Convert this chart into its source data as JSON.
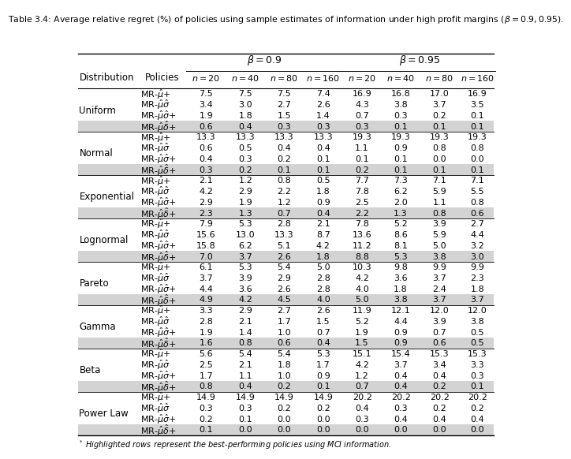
{
  "title": "Table 3.4: Average relative regret (%) of policies using sample estimates of information under high profit margins ($\\beta = 0.9, 0.95$).",
  "footnote": "* Highlighted rows represent the best-performing policies using MCI information.",
  "distributions": [
    "Uniform",
    "Normal",
    "Exponential",
    "Lognormal",
    "Pareto",
    "Gamma",
    "Beta",
    "Power Law"
  ],
  "data": {
    "Uniform": [
      [
        7.5,
        7.5,
        7.5,
        7.4,
        16.9,
        16.8,
        17.0,
        16.9
      ],
      [
        3.4,
        3.0,
        2.7,
        2.6,
        4.3,
        3.8,
        3.7,
        3.5
      ],
      [
        1.9,
        1.8,
        1.5,
        1.4,
        0.7,
        0.3,
        0.2,
        0.1
      ],
      [
        0.6,
        0.4,
        0.3,
        0.3,
        0.3,
        0.1,
        0.1,
        0.1
      ]
    ],
    "Normal": [
      [
        13.3,
        13.3,
        13.3,
        13.3,
        19.3,
        19.3,
        19.3,
        19.3
      ],
      [
        0.6,
        0.5,
        0.4,
        0.4,
        1.1,
        0.9,
        0.8,
        0.8
      ],
      [
        0.4,
        0.3,
        0.2,
        0.1,
        0.1,
        0.1,
        0.0,
        0.0
      ],
      [
        0.3,
        0.2,
        0.1,
        0.1,
        0.2,
        0.1,
        0.1,
        0.1
      ]
    ],
    "Exponential": [
      [
        2.1,
        1.2,
        0.8,
        0.5,
        7.7,
        7.3,
        7.1,
        7.1
      ],
      [
        4.2,
        2.9,
        2.2,
        1.8,
        7.8,
        6.2,
        5.9,
        5.5
      ],
      [
        2.9,
        1.9,
        1.2,
        0.9,
        2.5,
        2.0,
        1.1,
        0.8
      ],
      [
        2.3,
        1.3,
        0.7,
        0.4,
        2.2,
        1.3,
        0.8,
        0.6
      ]
    ],
    "Lognormal": [
      [
        7.9,
        5.3,
        2.8,
        2.1,
        7.8,
        5.2,
        3.9,
        2.7
      ],
      [
        15.6,
        13.0,
        13.3,
        8.7,
        13.6,
        8.6,
        5.9,
        4.4
      ],
      [
        15.8,
        6.2,
        5.1,
        4.2,
        11.2,
        8.1,
        5.0,
        3.2
      ],
      [
        7.0,
        3.7,
        2.6,
        1.8,
        8.8,
        5.3,
        3.8,
        3.0
      ]
    ],
    "Pareto": [
      [
        6.1,
        5.3,
        5.4,
        5.0,
        10.3,
        9.8,
        9.9,
        9.9
      ],
      [
        3.7,
        3.9,
        2.9,
        2.8,
        4.2,
        3.6,
        3.7,
        2.3
      ],
      [
        4.4,
        3.6,
        2.6,
        2.8,
        4.0,
        1.8,
        2.4,
        1.8
      ],
      [
        4.9,
        4.2,
        4.5,
        4.0,
        5.0,
        3.8,
        3.7,
        3.7
      ]
    ],
    "Gamma": [
      [
        3.3,
        2.9,
        2.7,
        2.6,
        11.9,
        12.1,
        12.0,
        12.0
      ],
      [
        2.8,
        2.1,
        1.7,
        1.5,
        5.2,
        4.4,
        3.9,
        3.8
      ],
      [
        1.9,
        1.4,
        1.0,
        0.7,
        1.9,
        0.9,
        0.7,
        0.5
      ],
      [
        1.6,
        0.8,
        0.6,
        0.4,
        1.5,
        0.9,
        0.6,
        0.5
      ]
    ],
    "Beta": [
      [
        5.6,
        5.4,
        5.4,
        5.3,
        15.1,
        15.4,
        15.3,
        15.3
      ],
      [
        2.5,
        2.1,
        1.8,
        1.7,
        4.2,
        3.7,
        3.4,
        3.3
      ],
      [
        1.7,
        1.1,
        1.0,
        0.9,
        1.2,
        0.4,
        0.4,
        0.3
      ],
      [
        0.8,
        0.4,
        0.2,
        0.1,
        0.7,
        0.4,
        0.2,
        0.1
      ]
    ],
    "Power Law": [
      [
        14.9,
        14.9,
        14.9,
        14.9,
        20.2,
        20.2,
        20.2,
        20.2
      ],
      [
        0.3,
        0.3,
        0.2,
        0.2,
        0.4,
        0.3,
        0.2,
        0.2
      ],
      [
        0.2,
        0.1,
        0.0,
        0.0,
        0.3,
        0.4,
        0.4,
        0.4
      ],
      [
        0.1,
        0.0,
        0.0,
        0.0,
        0.0,
        0.0,
        0.0,
        0.0
      ]
    ]
  },
  "highlight_color": "#d3d3d3",
  "col_bounds": [
    0.0,
    0.148,
    0.262,
    0.358,
    0.45,
    0.542,
    0.636,
    0.727,
    0.82,
    0.912,
    1.0
  ]
}
